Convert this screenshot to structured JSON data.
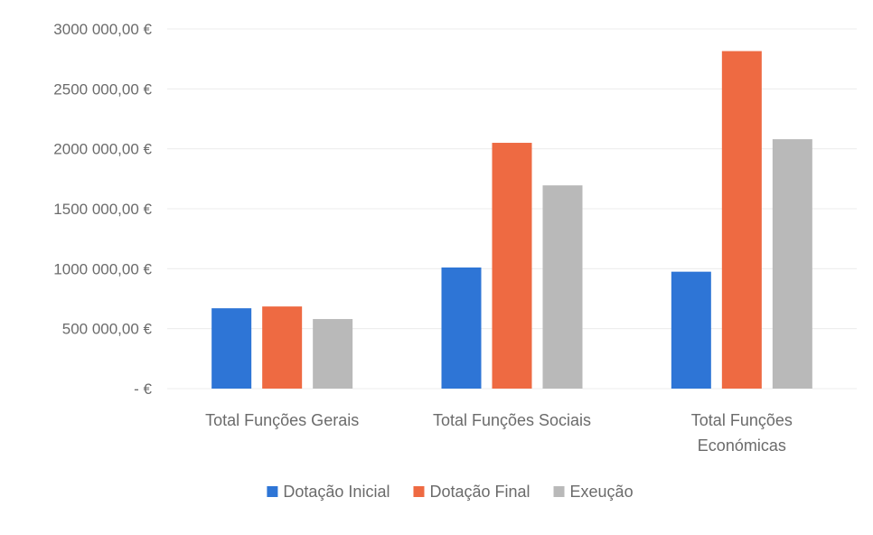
{
  "chart_data": {
    "type": "bar",
    "categories": [
      [
        "Total Funções Gerais"
      ],
      [
        "Total Funções Sociais"
      ],
      [
        "Total Funções",
        "Económicas"
      ]
    ],
    "series": [
      {
        "name": "Dotação Inicial",
        "color": "#2e75d6",
        "values": [
          670000,
          1010000,
          975000
        ]
      },
      {
        "name": "Dotação Final",
        "color": "#ee6a42",
        "values": [
          685000,
          2050000,
          2815000
        ]
      },
      {
        "name": "Exeução",
        "color": "#b9b9b9",
        "values": [
          580000,
          1695000,
          2080000
        ]
      }
    ],
    "y_ticks": [
      {
        "value": 3000000,
        "label": "3000 000,00 €"
      },
      {
        "value": 2500000,
        "label": "2500 000,00 €"
      },
      {
        "value": 2000000,
        "label": "2000 000,00 €"
      },
      {
        "value": 1500000,
        "label": "1500 000,00 €"
      },
      {
        "value": 1000000,
        "label": "1000 000,00 €"
      },
      {
        "value": 500000,
        "label": "500 000,00 €"
      },
      {
        "value": 0,
        "label": "-  €"
      }
    ],
    "ylim": [
      0,
      3000000
    ],
    "grid": true,
    "legend_position": "bottom",
    "title": "",
    "xlabel": "",
    "ylabel": ""
  }
}
